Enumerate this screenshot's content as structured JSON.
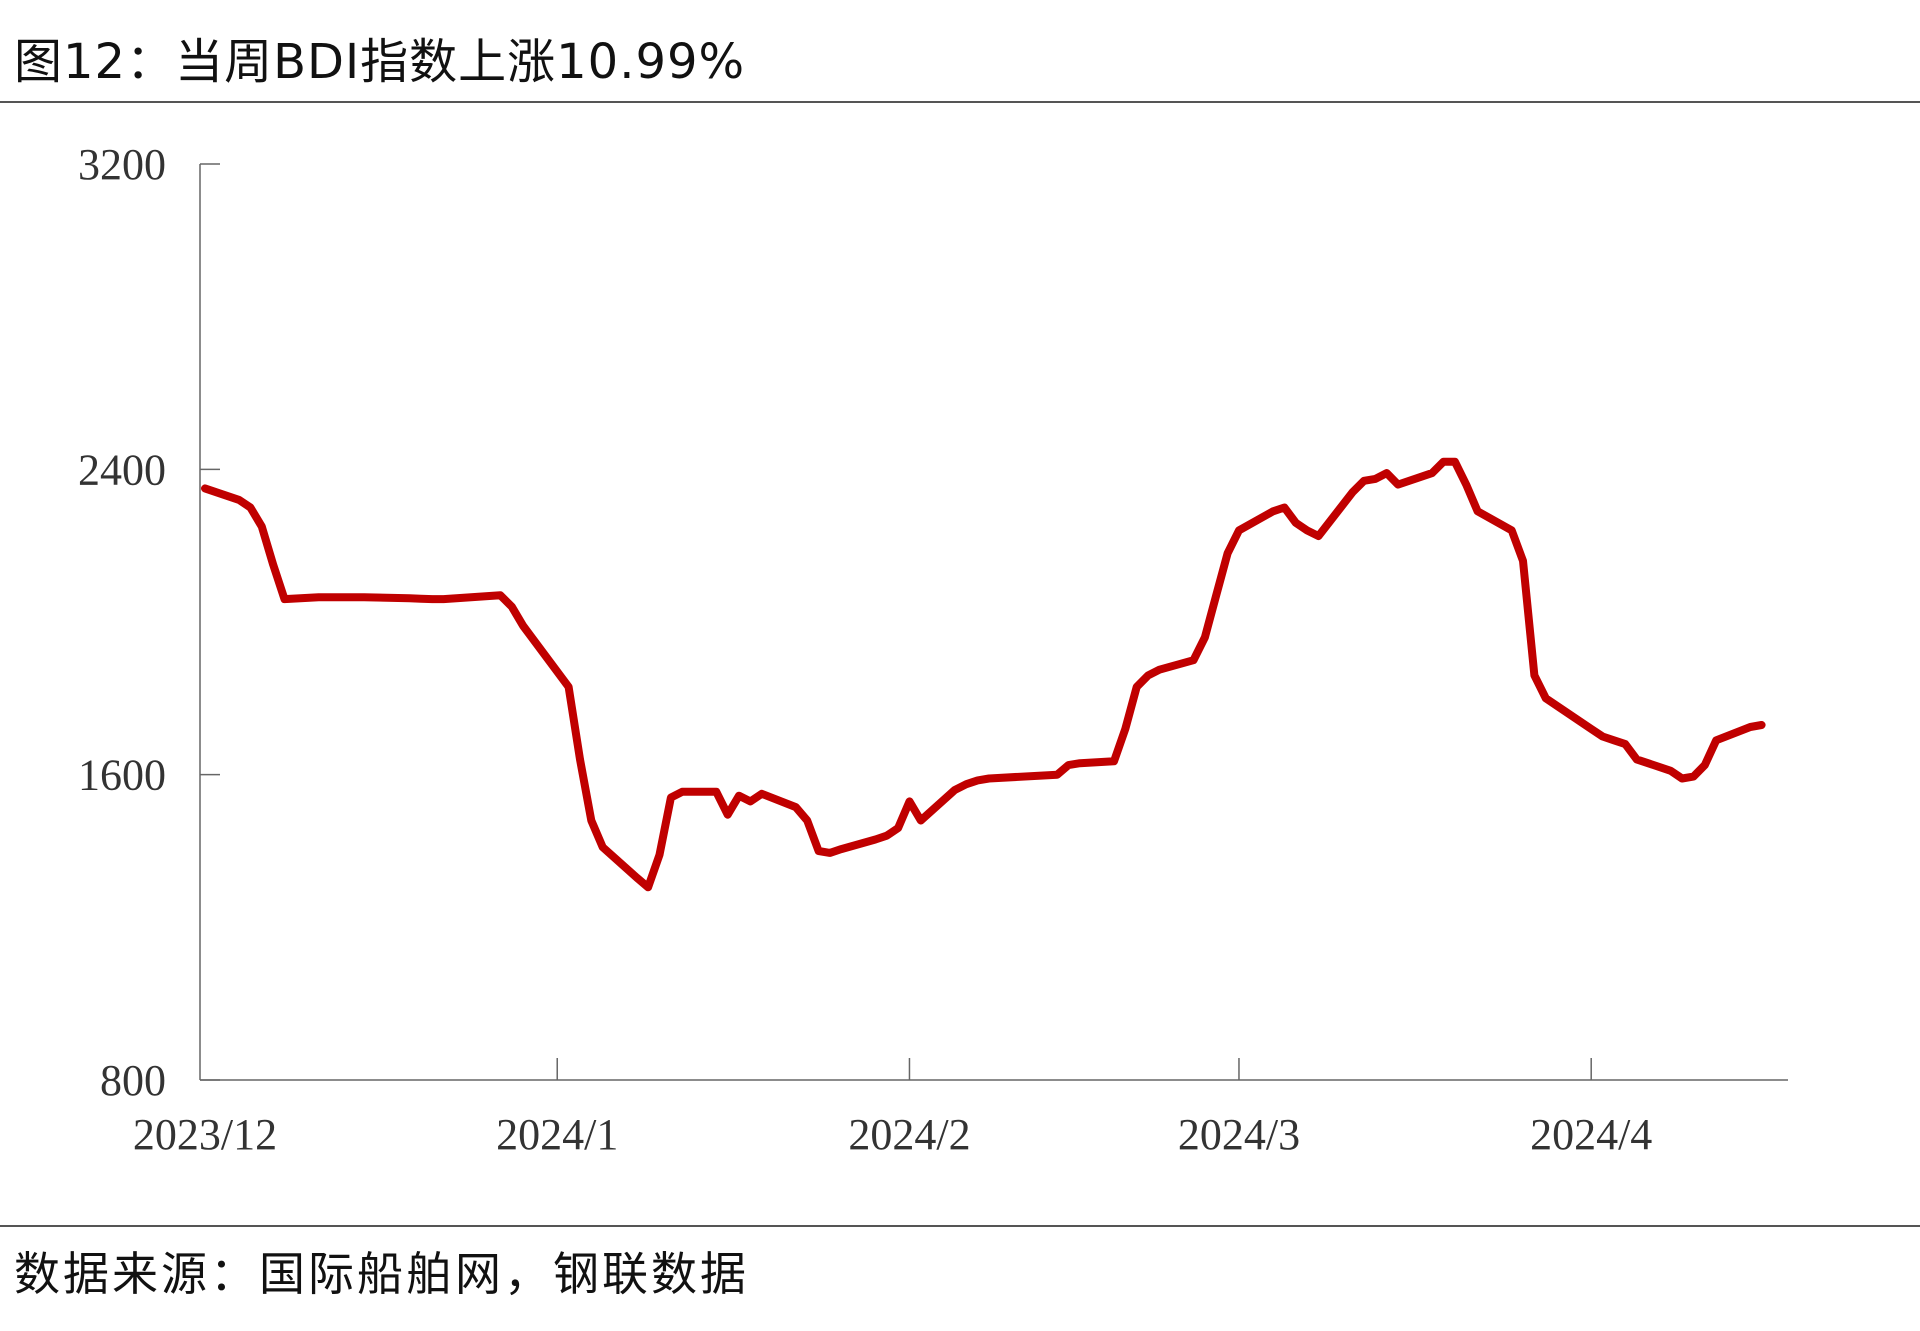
{
  "title": "图12：当周BDI指数上涨10.99%",
  "source": "数据来源：国际船舶网，钢联数据",
  "chart_data": {
    "type": "line",
    "title": "当周BDI指数上涨10.99%",
    "xlabel": "",
    "ylabel": "",
    "ylim": [
      800,
      3200
    ],
    "yticks": [
      "3200",
      "2400",
      "1600",
      "800"
    ],
    "xticks": [
      "2023/12",
      "2024/1",
      "2024/2",
      "2024/3",
      "2024/4"
    ],
    "xlim": [
      "2023-12-01",
      "2024-04-17"
    ],
    "grid": false,
    "line_color": "#C00000",
    "series": [
      {
        "x": [
          "2023-12-01",
          "2023-12-04",
          "2023-12-05",
          "2023-12-06",
          "2023-12-07",
          "2023-12-08",
          "2023-12-11",
          "2023-12-12",
          "2023-12-13",
          "2023-12-14",
          "2023-12-15",
          "2023-12-18",
          "2023-12-19",
          "2023-12-20",
          "2023-12-21",
          "2023-12-22",
          "2023-12-27",
          "2023-12-28",
          "2023-12-29",
          "2024-01-02",
          "2024-01-03",
          "2024-01-04",
          "2024-01-05",
          "2024-01-08",
          "2024-01-09",
          "2024-01-10",
          "2024-01-11",
          "2024-01-12",
          "2024-01-15",
          "2024-01-16",
          "2024-01-17",
          "2024-01-18",
          "2024-01-19",
          "2024-01-22",
          "2024-01-23",
          "2024-01-24",
          "2024-01-25",
          "2024-01-26",
          "2024-01-29",
          "2024-01-30",
          "2024-01-31",
          "2024-02-01",
          "2024-02-02",
          "2024-02-05",
          "2024-02-06",
          "2024-02-07",
          "2024-02-08",
          "2024-02-14",
          "2024-02-15",
          "2024-02-16",
          "2024-02-19",
          "2024-02-20",
          "2024-02-21",
          "2024-02-22",
          "2024-02-23",
          "2024-02-26",
          "2024-02-27",
          "2024-02-28",
          "2024-02-29",
          "2024-03-01",
          "2024-03-04",
          "2024-03-05",
          "2024-03-06",
          "2024-03-07",
          "2024-03-08",
          "2024-03-11",
          "2024-03-12",
          "2024-03-13",
          "2024-03-14",
          "2024-03-15",
          "2024-03-18",
          "2024-03-19",
          "2024-03-20",
          "2024-03-21",
          "2024-03-22",
          "2024-03-25",
          "2024-03-26",
          "2024-03-27",
          "2024-03-28",
          "2024-04-01",
          "2024-04-02",
          "2024-04-03",
          "2024-04-04",
          "2024-04-05",
          "2024-04-08",
          "2024-04-09",
          "2024-04-10",
          "2024-04-11",
          "2024-04-12",
          "2024-04-15",
          "2024-04-16"
        ],
        "values": [
          2350,
          2320,
          2300,
          2250,
          2150,
          2060,
          2065,
          2065,
          2065,
          2065,
          2065,
          2063,
          2062,
          2061,
          2060,
          2060,
          2070,
          2040,
          1990,
          1830,
          1640,
          1480,
          1410,
          1330,
          1305,
          1390,
          1540,
          1555,
          1555,
          1495,
          1545,
          1530,
          1550,
          1515,
          1480,
          1400,
          1395,
          1405,
          1430,
          1440,
          1460,
          1530,
          1480,
          1560,
          1575,
          1585,
          1590,
          1600,
          1625,
          1630,
          1635,
          1720,
          1830,
          1860,
          1875,
          1900,
          1960,
          2070,
          2180,
          2240,
          2290,
          2300,
          2260,
          2240,
          2225,
          2340,
          2370,
          2375,
          2390,
          2360,
          2390,
          2420,
          2420,
          2360,
          2290,
          2240,
          2160,
          1860,
          1800,
          1720,
          1700,
          1690,
          1680,
          1640,
          1610,
          1590,
          1595,
          1625,
          1690,
          1725,
          1730
        ]
      }
    ]
  }
}
